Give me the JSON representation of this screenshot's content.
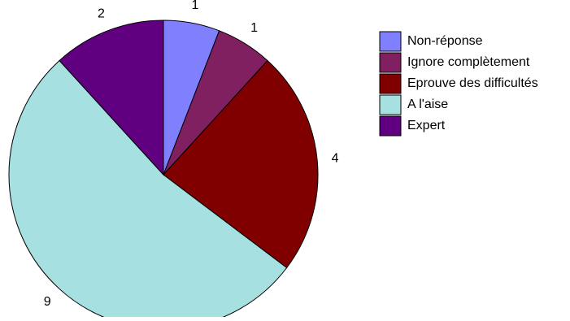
{
  "chart_data": {
    "type": "pie",
    "title": "",
    "categories": [
      "Non-réponse",
      "Ignore complètement",
      "Eprouve des difficultés",
      "A l'aise",
      "Expert"
    ],
    "values": [
      1,
      1,
      4,
      9,
      2
    ],
    "data_labels": [
      "1",
      "1",
      "4",
      "9",
      "2"
    ],
    "colors": [
      "#8080FF",
      "#802060",
      "#800000",
      "#A7E0E0",
      "#600080"
    ],
    "start_angle_deg": 0,
    "direction": "clockwise",
    "legend_position": "right"
  }
}
